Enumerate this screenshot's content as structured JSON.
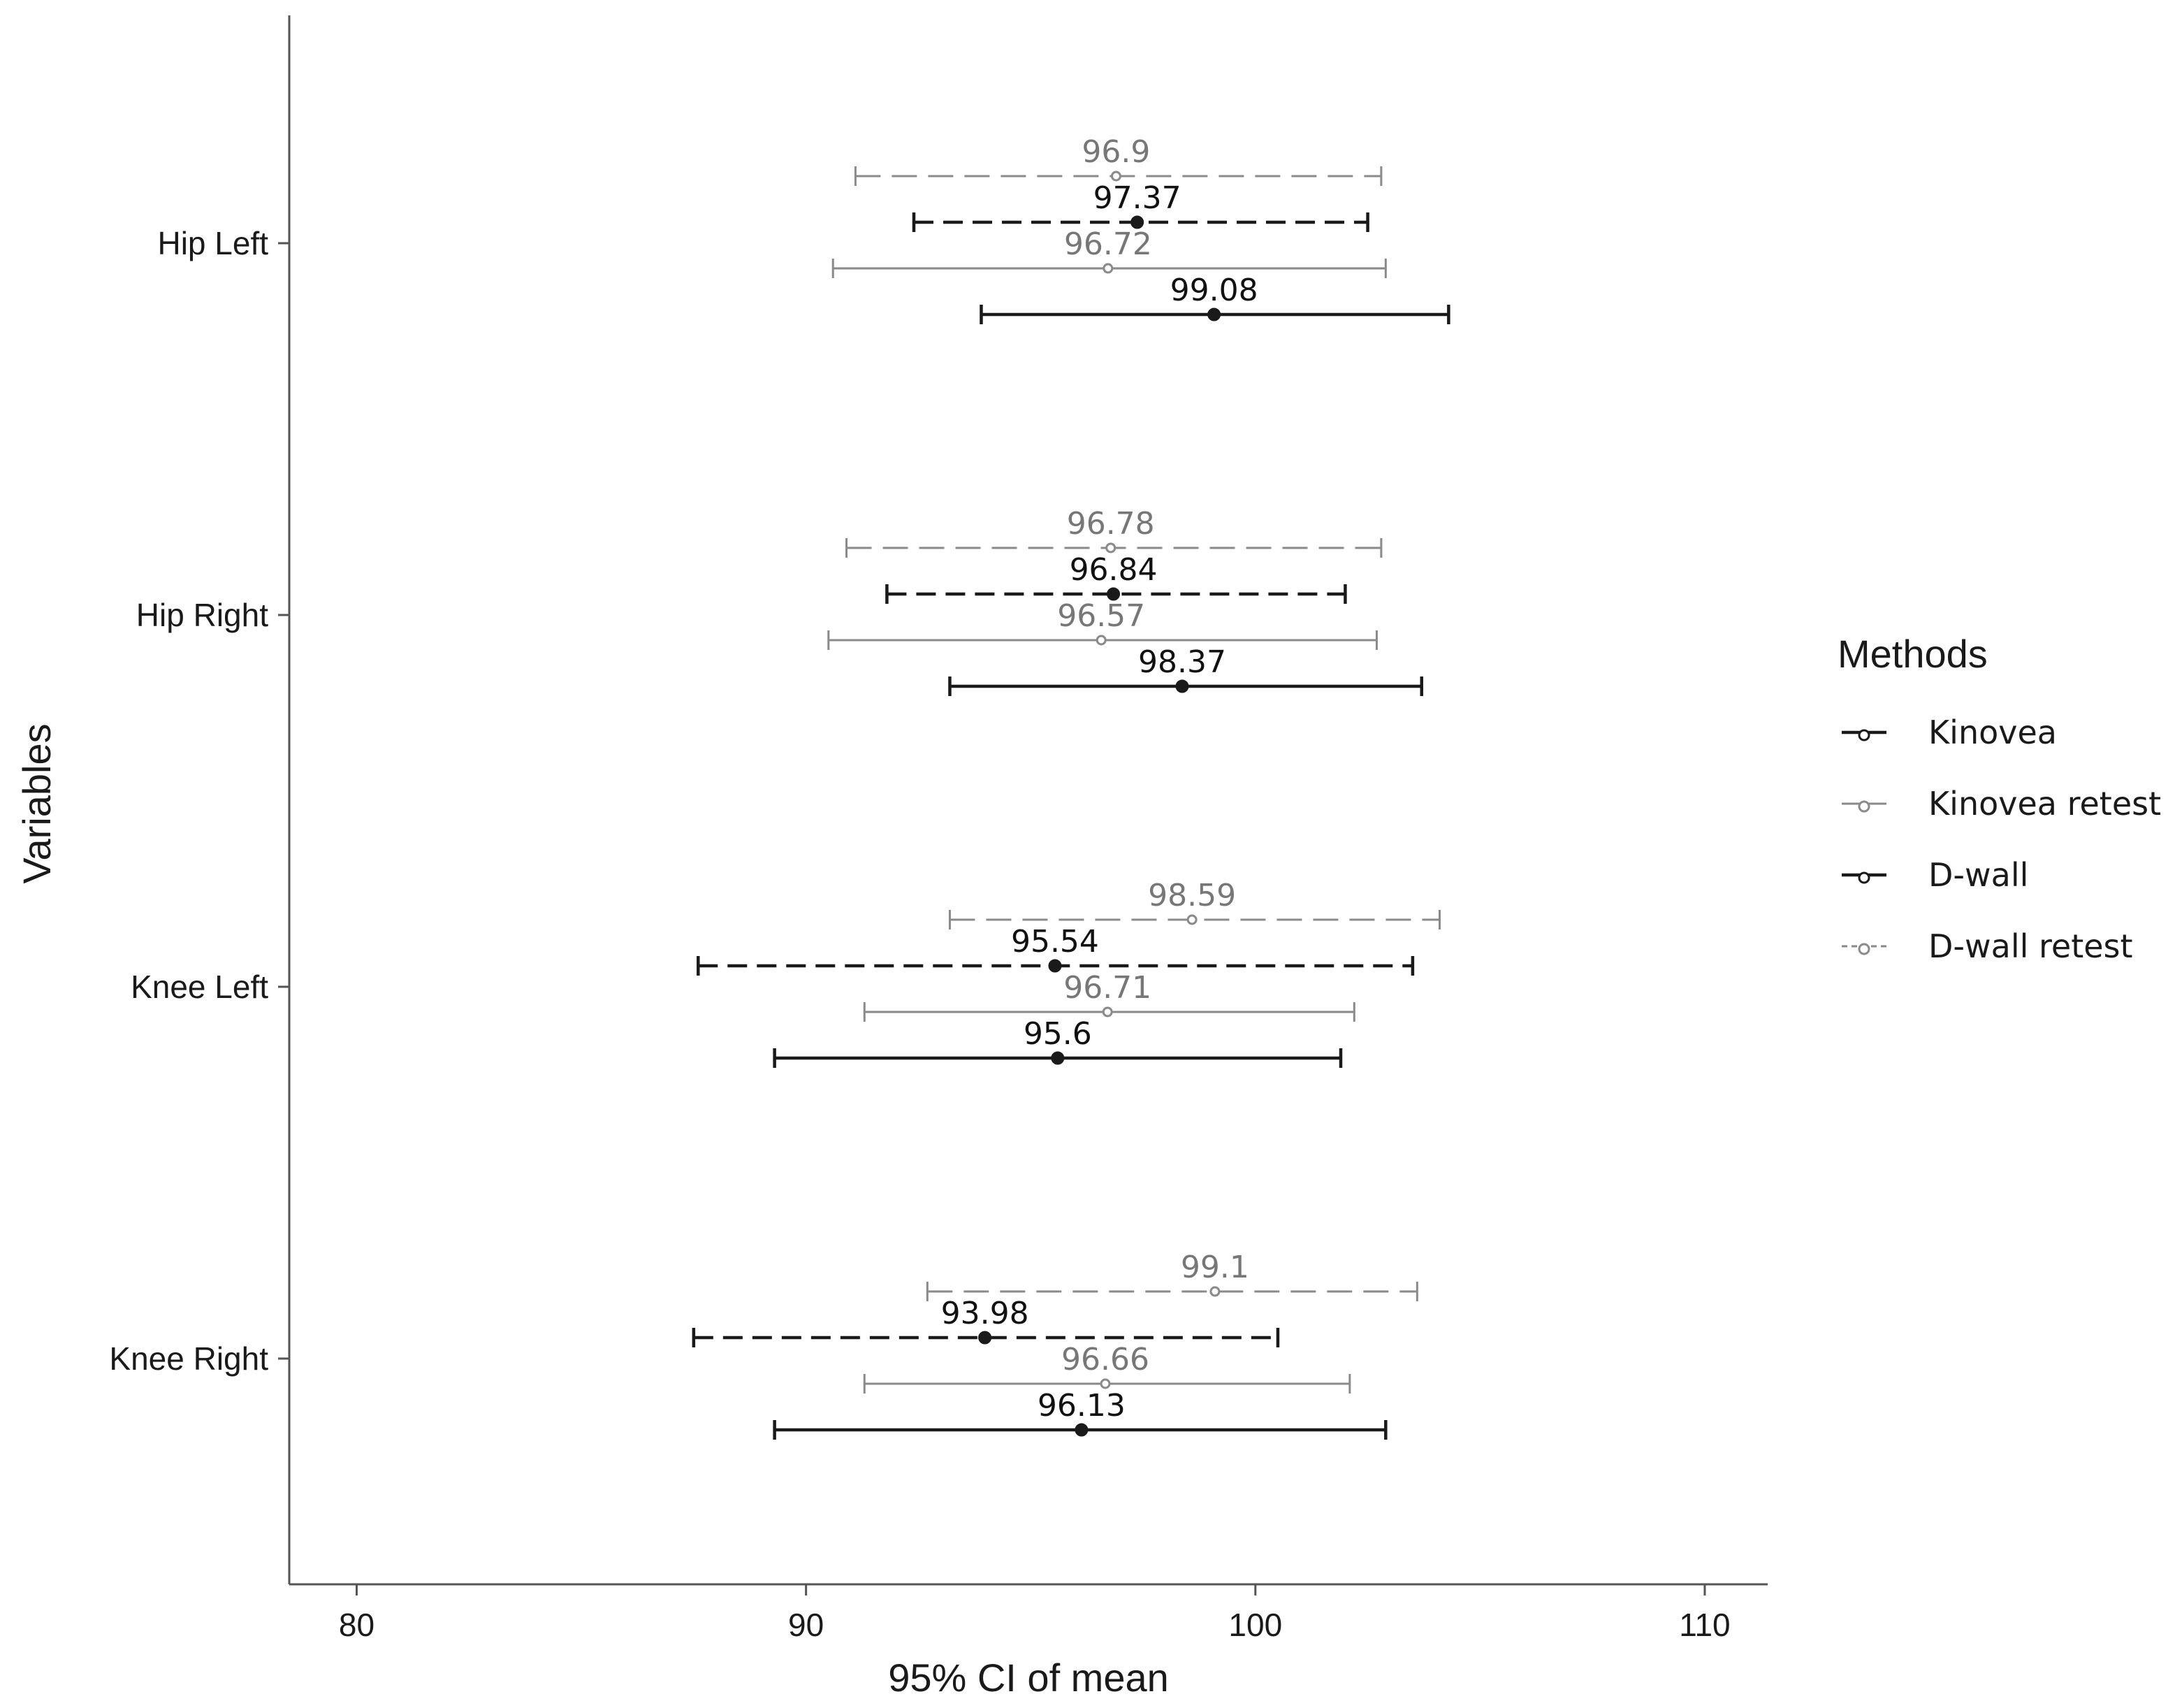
{
  "chart_data": {
    "type": "errorbar",
    "xlabel": "95% CI of mean",
    "ylabel": "Variables",
    "xlim": [
      78.5,
      111.4
    ],
    "x_ticks": [
      80,
      90,
      100,
      110
    ],
    "x_tick_labels": [
      "80",
      "90",
      "100",
      "110"
    ],
    "categories": [
      "Hip Left",
      "Hip Right",
      "Knee Left",
      "Knee Right"
    ],
    "grid": false,
    "legend": {
      "title": "Methods",
      "position": "right",
      "entries": [
        "Kinovea",
        "Kinovea retest",
        "D-wall",
        "D-wall retest"
      ]
    },
    "series": [
      {
        "name": "D-wall retest",
        "color": "#8a8a8a",
        "linestyle": "longdash",
        "points": [
          {
            "category": "Hip Left",
            "mean": 96.9,
            "lower": 91.1,
            "upper": 102.8,
            "label": "96.9"
          },
          {
            "category": "Hip Right",
            "mean": 96.78,
            "lower": 90.9,
            "upper": 102.8,
            "label": "96.78"
          },
          {
            "category": "Knee Left",
            "mean": 98.59,
            "lower": 93.2,
            "upper": 104.1,
            "label": "98.59"
          },
          {
            "category": "Knee Right",
            "mean": 99.1,
            "lower": 92.7,
            "upper": 103.6,
            "label": "99.1"
          }
        ]
      },
      {
        "name": "D-wall",
        "color": "#1a1a1a",
        "linestyle": "dashed",
        "points": [
          {
            "category": "Hip Left",
            "mean": 97.37,
            "lower": 92.4,
            "upper": 102.5,
            "label": "97.37"
          },
          {
            "category": "Hip Right",
            "mean": 96.84,
            "lower": 91.8,
            "upper": 102.0,
            "label": "96.84"
          },
          {
            "category": "Knee Left",
            "mean": 95.54,
            "lower": 87.6,
            "upper": 103.5,
            "label": "95.54"
          },
          {
            "category": "Knee Right",
            "mean": 93.98,
            "lower": 87.5,
            "upper": 100.5,
            "label": "93.98"
          }
        ]
      },
      {
        "name": "Kinovea retest",
        "color": "#8a8a8a",
        "linestyle": "solid",
        "points": [
          {
            "category": "Hip Left",
            "mean": 96.72,
            "lower": 90.6,
            "upper": 102.9,
            "label": "96.72"
          },
          {
            "category": "Hip Right",
            "mean": 96.57,
            "lower": 90.5,
            "upper": 102.7,
            "label": "96.57"
          },
          {
            "category": "Knee Left",
            "mean": 96.71,
            "lower": 91.3,
            "upper": 102.2,
            "label": "96.71"
          },
          {
            "category": "Knee Right",
            "mean": 96.66,
            "lower": 91.3,
            "upper": 102.1,
            "label": "96.66"
          }
        ]
      },
      {
        "name": "Kinovea",
        "color": "#1a1a1a",
        "linestyle": "solid",
        "points": [
          {
            "category": "Hip Left",
            "mean": 99.08,
            "lower": 93.9,
            "upper": 104.3,
            "label": "99.08"
          },
          {
            "category": "Hip Right",
            "mean": 98.37,
            "lower": 93.2,
            "upper": 103.7,
            "label": "98.37"
          },
          {
            "category": "Knee Left",
            "mean": 95.6,
            "lower": 89.3,
            "upper": 101.9,
            "label": "95.6"
          },
          {
            "category": "Knee Right",
            "mean": 96.13,
            "lower": 89.3,
            "upper": 102.9,
            "label": "96.13"
          }
        ]
      }
    ]
  }
}
